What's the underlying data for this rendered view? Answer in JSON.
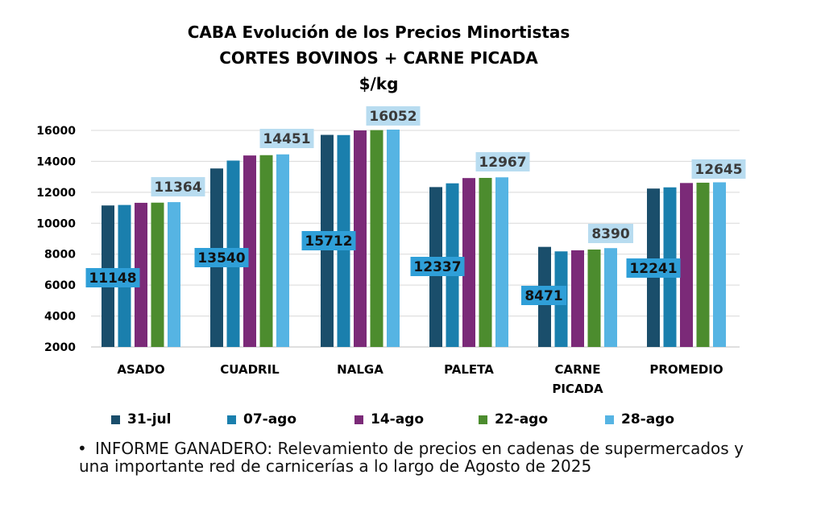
{
  "title": "CABA Evolución de los Precios Minortistas",
  "subtitle": "CORTES BOVINOS + CARNE PICADA",
  "unit": "$/kg",
  "note": {
    "bullet": "•",
    "text": "INFORME GANADERO: Relevamiento de precios en cadenas de supermercados y una importante red de carnicerías a lo largo de Agosto de 2025"
  },
  "chart_data": {
    "type": "bar",
    "title": "CABA Evolución de los Precios Minortistas",
    "subtitle": "CORTES BOVINOS + CARNE PICADA",
    "ylabel": "$/kg",
    "ylim": [
      2000,
      16000
    ],
    "yticks": [
      2000,
      4000,
      6000,
      8000,
      10000,
      12000,
      14000,
      16000
    ],
    "grid": true,
    "legend_position": "bottom",
    "categories": [
      [
        "ASADO"
      ],
      [
        "CUADRIL"
      ],
      [
        "NALGA"
      ],
      [
        "PALETA"
      ],
      [
        "CARNE",
        "PICADA"
      ],
      [
        "PROMEDIO"
      ]
    ],
    "series": [
      {
        "name": "31-jul",
        "color": "#1a4e6b",
        "values": [
          11148,
          13540,
          15712,
          12337,
          8471,
          12241
        ]
      },
      {
        "name": "07-ago",
        "color": "#1a7fad",
        "values": [
          11180,
          14050,
          15700,
          12580,
          8180,
          12320
        ]
      },
      {
        "name": "14-ago",
        "color": "#7b2a78",
        "values": [
          11320,
          14380,
          16000,
          12920,
          8250,
          12600
        ]
      },
      {
        "name": "22-ago",
        "color": "#4c8c2e",
        "values": [
          11330,
          14400,
          16020,
          12930,
          8300,
          12620
        ]
      },
      {
        "name": "28-ago",
        "color": "#56b4e3",
        "values": [
          11364,
          14451,
          16052,
          12967,
          8390,
          12645
        ]
      }
    ],
    "data_labels": [
      {
        "series": 0,
        "category": 0,
        "text": "11148"
      },
      {
        "series": 4,
        "category": 0,
        "text": "11364"
      },
      {
        "series": 0,
        "category": 1,
        "text": "13540"
      },
      {
        "series": 4,
        "category": 1,
        "text": "14451"
      },
      {
        "series": 0,
        "category": 2,
        "text": "15712"
      },
      {
        "series": 4,
        "category": 2,
        "text": "16052"
      },
      {
        "series": 0,
        "category": 3,
        "text": "12337"
      },
      {
        "series": 4,
        "category": 3,
        "text": "12967"
      },
      {
        "series": 0,
        "category": 4,
        "text": "8471"
      },
      {
        "series": 4,
        "category": 4,
        "text": "8390"
      },
      {
        "series": 0,
        "category": 5,
        "text": "12241"
      },
      {
        "series": 4,
        "category": 5,
        "text": "12645"
      }
    ],
    "label_colors": {
      "first": "#2f9fd8",
      "last": "#b8dcf0"
    }
  }
}
